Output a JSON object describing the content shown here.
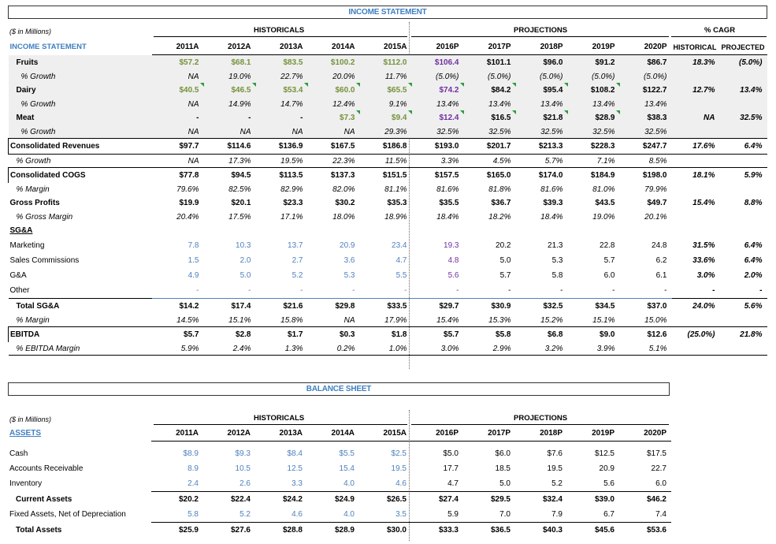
{
  "income": {
    "title": "INCOME STATEMENT",
    "units": "($ in Millions)",
    "label": "INCOME STATEMENT",
    "historicals": "HISTORICALS",
    "projections": "PROJECTIONS",
    "cagr": "% CAGR",
    "cagr_hist": "HISTORICAL",
    "cagr_proj": "PROJECTED",
    "years": [
      "2011A",
      "2012A",
      "2013A",
      "2014A",
      "2015A",
      "2016P",
      "2017P",
      "2018P",
      "2019P",
      "2020P"
    ],
    "rows": [
      {
        "label": "Fruits",
        "vals": [
          "$57.2",
          "$68.1",
          "$83.5",
          "$100.2",
          "$112.0",
          "$106.4",
          "$101.1",
          "$96.0",
          "$91.2",
          "$86.7"
        ],
        "hist": "18.3%",
        "proj": "(5.0%)"
      },
      {
        "label": "% Growth",
        "vals": [
          "NA",
          "19.0%",
          "22.7%",
          "20.0%",
          "11.7%",
          "(5.0%)",
          "(5.0%)",
          "(5.0%)",
          "(5.0%)",
          "(5.0%)"
        ],
        "hist": "",
        "proj": ""
      },
      {
        "label": "Dairy",
        "vals": [
          "$40.5",
          "$46.5",
          "$53.4",
          "$60.0",
          "$65.5",
          "$74.2",
          "$84.2",
          "$95.4",
          "$108.2",
          "$122.7"
        ],
        "hist": "12.7%",
        "proj": "13.4%"
      },
      {
        "label": "% Growth",
        "vals": [
          "NA",
          "14.9%",
          "14.7%",
          "12.4%",
          "9.1%",
          "13.4%",
          "13.4%",
          "13.4%",
          "13.4%",
          "13.4%"
        ],
        "hist": "",
        "proj": ""
      },
      {
        "label": "Meat",
        "vals": [
          "-",
          "-",
          "-",
          "$7.3",
          "$9.4",
          "$12.4",
          "$16.5",
          "$21.8",
          "$28.9",
          "$38.3"
        ],
        "hist": "NA",
        "proj": "32.5%"
      },
      {
        "label": "% Growth",
        "vals": [
          "NA",
          "NA",
          "NA",
          "NA",
          "29.3%",
          "32.5%",
          "32.5%",
          "32.5%",
          "32.5%",
          "32.5%"
        ],
        "hist": "",
        "proj": ""
      },
      {
        "label": "Consolidated Revenues",
        "vals": [
          "$97.7",
          "$114.6",
          "$136.9",
          "$167.5",
          "$186.8",
          "$193.0",
          "$201.7",
          "$213.3",
          "$228.3",
          "$247.7"
        ],
        "hist": "17.6%",
        "proj": "6.4%"
      },
      {
        "label": "% Growth",
        "vals": [
          "NA",
          "17.3%",
          "19.5%",
          "22.3%",
          "11.5%",
          "3.3%",
          "4.5%",
          "5.7%",
          "7.1%",
          "8.5%"
        ],
        "hist": "",
        "proj": ""
      },
      {
        "label": "Consolidated COGS",
        "vals": [
          "$77.8",
          "$94.5",
          "$113.5",
          "$137.3",
          "$151.5",
          "$157.5",
          "$165.0",
          "$174.0",
          "$184.9",
          "$198.0"
        ],
        "hist": "18.1%",
        "proj": "5.9%"
      },
      {
        "label": "% Margin",
        "vals": [
          "79.6%",
          "82.5%",
          "82.9%",
          "82.0%",
          "81.1%",
          "81.6%",
          "81.8%",
          "81.6%",
          "81.0%",
          "79.9%"
        ],
        "hist": "",
        "proj": ""
      },
      {
        "label": "Gross Profits",
        "vals": [
          "$19.9",
          "$20.1",
          "$23.3",
          "$30.2",
          "$35.3",
          "$35.5",
          "$36.7",
          "$39.3",
          "$43.5",
          "$49.7"
        ],
        "hist": "15.4%",
        "proj": "8.8%"
      },
      {
        "label": "% Gross Margin",
        "vals": [
          "20.4%",
          "17.5%",
          "17.1%",
          "18.0%",
          "18.9%",
          "18.4%",
          "18.2%",
          "18.4%",
          "19.0%",
          "20.1%"
        ],
        "hist": "",
        "proj": ""
      },
      {
        "label": "SG&A",
        "vals": [
          "",
          "",
          "",
          "",
          "",
          "",
          "",
          "",
          "",
          ""
        ],
        "hist": "",
        "proj": ""
      },
      {
        "label": "Marketing",
        "vals": [
          "7.8",
          "10.3",
          "13.7",
          "20.9",
          "23.4",
          "19.3",
          "20.2",
          "21.3",
          "22.8",
          "24.8"
        ],
        "hist": "31.5%",
        "proj": "6.4%"
      },
      {
        "label": "Sales Commissions",
        "vals": [
          "1.5",
          "2.0",
          "2.7",
          "3.6",
          "4.7",
          "4.8",
          "5.0",
          "5.3",
          "5.7",
          "6.2"
        ],
        "hist": "33.6%",
        "proj": "6.4%"
      },
      {
        "label": "G&A",
        "vals": [
          "4.9",
          "5.0",
          "5.2",
          "5.3",
          "5.5",
          "5.6",
          "5.7",
          "5.8",
          "6.0",
          "6.1"
        ],
        "hist": "3.0%",
        "proj": "2.0%"
      },
      {
        "label": "Other",
        "vals": [
          "-",
          "-",
          "-",
          "-",
          "-",
          "-",
          "-",
          "-",
          "-",
          "-"
        ],
        "hist": "-",
        "proj": "-"
      },
      {
        "label": "Total SG&A",
        "vals": [
          "$14.2",
          "$17.4",
          "$21.6",
          "$29.8",
          "$33.5",
          "$29.7",
          "$30.9",
          "$32.5",
          "$34.5",
          "$37.0"
        ],
        "hist": "24.0%",
        "proj": "5.6%"
      },
      {
        "label": "% Margin",
        "vals": [
          "14.5%",
          "15.1%",
          "15.8%",
          "NA",
          "17.9%",
          "15.4%",
          "15.3%",
          "15.2%",
          "15.1%",
          "15.0%"
        ],
        "hist": "",
        "proj": ""
      },
      {
        "label": "EBITDA",
        "vals": [
          "$5.7",
          "$2.8",
          "$1.7",
          "$0.3",
          "$1.8",
          "$5.7",
          "$5.8",
          "$6.8",
          "$9.0",
          "$12.6"
        ],
        "hist": "(25.0%)",
        "proj": "21.8%"
      },
      {
        "label": "% EBITDA Margin",
        "vals": [
          "5.9%",
          "2.4%",
          "1.3%",
          "0.2%",
          "1.0%",
          "3.0%",
          "2.9%",
          "3.2%",
          "3.9%",
          "5.1%"
        ],
        "hist": "",
        "proj": ""
      }
    ]
  },
  "balance": {
    "title": "BALANCE SHEET",
    "units": "($ in Millions)",
    "label": "ASSETS",
    "historicals": "HISTORICALS",
    "projections": "PROJECTIONS",
    "years": [
      "2011A",
      "2012A",
      "2013A",
      "2014A",
      "2015A",
      "2016P",
      "2017P",
      "2018P",
      "2019P",
      "2020P"
    ],
    "rows": [
      {
        "label": "Cash",
        "vals": [
          "$8.9",
          "$9.3",
          "$8.4",
          "$5.5",
          "$2.5",
          "$5.0",
          "$6.0",
          "$7.6",
          "$12.5",
          "$17.5"
        ]
      },
      {
        "label": "Accounts Receivable",
        "vals": [
          "8.9",
          "10.5",
          "12.5",
          "15.4",
          "19.5",
          "17.7",
          "18.5",
          "19.5",
          "20.9",
          "22.7"
        ]
      },
      {
        "label": "Inventory",
        "vals": [
          "2.4",
          "2.6",
          "3.3",
          "4.0",
          "4.6",
          "4.7",
          "5.0",
          "5.2",
          "5.6",
          "6.0"
        ]
      },
      {
        "label": "Current Assets",
        "vals": [
          "$20.2",
          "$22.4",
          "$24.2",
          "$24.9",
          "$26.5",
          "$27.4",
          "$29.5",
          "$32.4",
          "$39.0",
          "$46.2"
        ]
      },
      {
        "label": "Fixed Assets, Net of Depreciation",
        "vals": [
          "5.8",
          "5.2",
          "4.6",
          "4.0",
          "3.5",
          "5.9",
          "7.0",
          "7.9",
          "6.7",
          "7.4"
        ]
      },
      {
        "label": "Total Assets",
        "vals": [
          "$25.9",
          "$27.6",
          "$28.8",
          "$28.9",
          "$30.0",
          "$33.3",
          "$36.5",
          "$40.3",
          "$45.6",
          "$53.6"
        ]
      }
    ]
  },
  "colors": {
    "green": "#76923c",
    "purple": "#7030a0",
    "blue": "#4f81bd",
    "header_blue": "#3f7fc1",
    "shade": "#efefef"
  }
}
